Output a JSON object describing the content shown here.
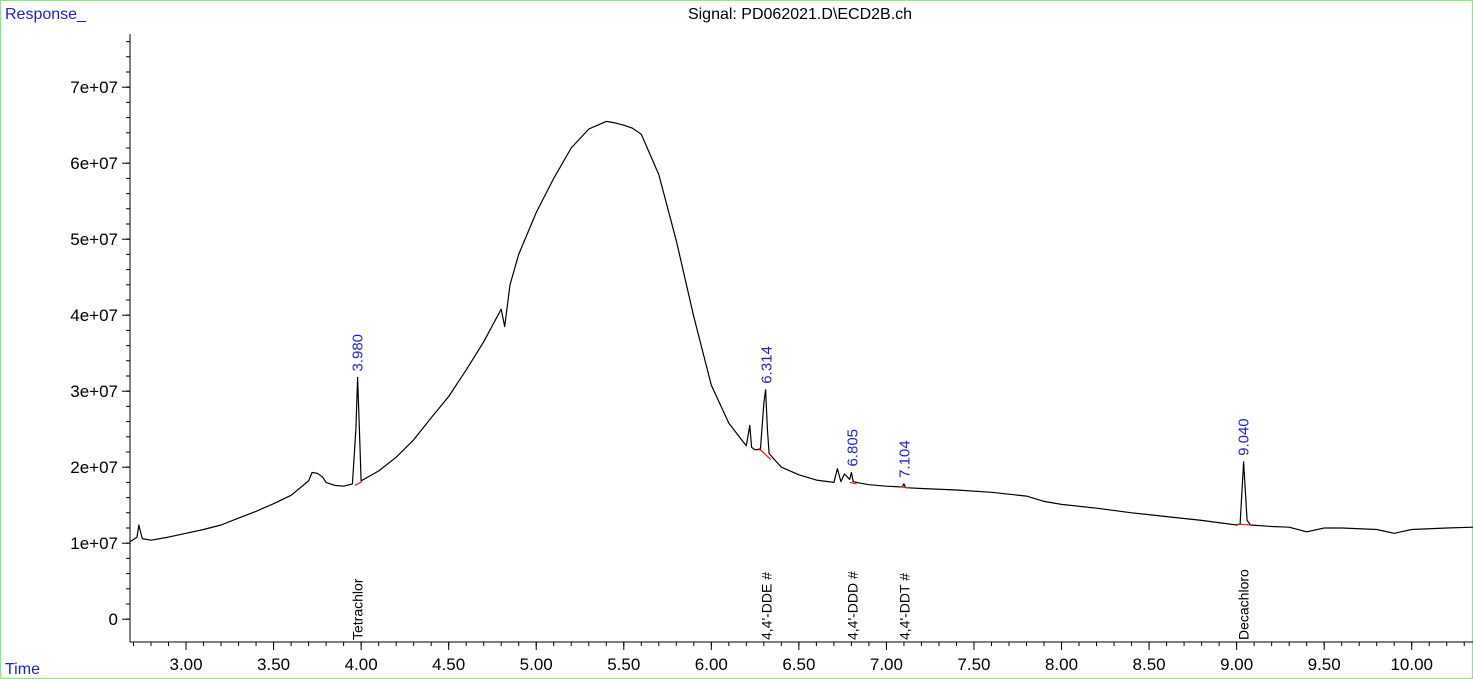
{
  "chart_data": {
    "type": "line",
    "title": "Signal: PD062021.D\\ECD2B.ch",
    "ylabel": "Response_",
    "xlabel": "Time",
    "xlim": [
      2.68,
      10.35
    ],
    "ylim": [
      -3000000,
      77000000
    ],
    "x_ticks": [
      3.0,
      3.5,
      4.0,
      4.5,
      5.0,
      5.5,
      6.0,
      6.5,
      7.0,
      7.5,
      8.0,
      8.5,
      9.0,
      9.5,
      10.0
    ],
    "x_tick_labels": [
      "3.00",
      "3.50",
      "4.00",
      "4.50",
      "5.00",
      "5.50",
      "6.00",
      "6.50",
      "7.00",
      "7.50",
      "8.00",
      "8.50",
      "9.00",
      "9.50",
      "10.00"
    ],
    "y_ticks": [
      0,
      10000000,
      20000000,
      30000000,
      40000000,
      50000000,
      60000000,
      70000000
    ],
    "y_tick_labels": [
      "0",
      "1e+07",
      "2e+07",
      "3e+07",
      "4e+07",
      "5e+07",
      "6e+07",
      "7e+07"
    ],
    "series": [
      {
        "color": "#000000",
        "x": [
          2.68,
          2.72,
          2.73,
          2.75,
          2.8,
          2.9,
          3.0,
          3.1,
          3.2,
          3.3,
          3.4,
          3.5,
          3.6,
          3.7,
          3.72,
          3.75,
          3.78,
          3.8,
          3.85,
          3.9,
          3.95,
          3.97,
          3.98,
          3.99,
          4.0,
          4.1,
          4.2,
          4.3,
          4.4,
          4.5,
          4.6,
          4.7,
          4.8,
          4.82,
          4.85,
          4.9,
          5.0,
          5.1,
          5.2,
          5.3,
          5.4,
          5.45,
          5.5,
          5.55,
          5.6,
          5.7,
          5.8,
          5.9,
          6.0,
          6.1,
          6.2,
          6.22,
          6.23,
          6.25,
          6.28,
          6.3,
          6.31,
          6.32,
          6.33,
          6.36,
          6.4,
          6.5,
          6.6,
          6.7,
          6.72,
          6.74,
          6.76,
          6.79,
          6.8,
          6.81,
          6.85,
          6.9,
          7.0,
          7.09,
          7.1,
          7.11,
          7.2,
          7.4,
          7.6,
          7.8,
          7.9,
          8.0,
          8.2,
          8.4,
          8.6,
          8.8,
          9.0,
          9.02,
          9.04,
          9.06,
          9.08,
          9.2,
          9.3,
          9.4,
          9.5,
          9.6,
          9.8,
          9.9,
          10.0,
          10.2,
          10.35
        ],
        "y": [
          10200000,
          10800000,
          12400000,
          10600000,
          10400000,
          10800000,
          11300000,
          11800000,
          12400000,
          13300000,
          14200000,
          15200000,
          16300000,
          18200000,
          19300000,
          19200000,
          18700000,
          18000000,
          17600000,
          17500000,
          17800000,
          25000000,
          31800000,
          25000000,
          18200000,
          19500000,
          21300000,
          23600000,
          26500000,
          29300000,
          32800000,
          36500000,
          40800000,
          38500000,
          44000000,
          48000000,
          53500000,
          58000000,
          62000000,
          64500000,
          65500000,
          65300000,
          65000000,
          64600000,
          63800000,
          58500000,
          49800000,
          39800000,
          30800000,
          25800000,
          22800000,
          25500000,
          22600000,
          22300000,
          22300000,
          28500000,
          30200000,
          25000000,
          21800000,
          21000000,
          20000000,
          19000000,
          18300000,
          18000000,
          19800000,
          18100000,
          19100000,
          18400000,
          19300000,
          18100000,
          17900000,
          17700000,
          17500000,
          17400000,
          17800000,
          17300000,
          17200000,
          17000000,
          16700000,
          16200000,
          15500000,
          15100000,
          14600000,
          14000000,
          13500000,
          13000000,
          12400000,
          12500000,
          20700000,
          13000000,
          12400000,
          12200000,
          12100000,
          11500000,
          12000000,
          12000000,
          11800000,
          11300000,
          11800000,
          12000000,
          12100000
        ]
      }
    ],
    "peaks": [
      {
        "rt": "3.980",
        "x": 3.98,
        "y": 31800000
      },
      {
        "rt": "6.314",
        "x": 6.314,
        "y": 30200000
      },
      {
        "rt": "6.805",
        "x": 6.805,
        "y": 19300000
      },
      {
        "rt": "7.104",
        "x": 7.104,
        "y": 17800000
      },
      {
        "rt": "9.040",
        "x": 9.04,
        "y": 20700000
      }
    ],
    "compounds": [
      {
        "name": "Tetrachlor",
        "x": 3.98
      },
      {
        "name": "4,4'-DDE #",
        "x": 6.314
      },
      {
        "name": "4,4'-DDD #",
        "x": 6.805
      },
      {
        "name": "4,4'-DDT #",
        "x": 7.104
      },
      {
        "name": "Decachloro",
        "x": 9.04
      }
    ],
    "baselines": [
      {
        "x1": 3.965,
        "y1": 17600000,
        "x2": 4.005,
        "y2": 18100000
      },
      {
        "x1": 6.27,
        "y1": 22500000,
        "x2": 6.34,
        "y2": 21000000
      },
      {
        "x1": 6.79,
        "y1": 18000000,
        "x2": 6.83,
        "y2": 17800000
      },
      {
        "x1": 7.08,
        "y1": 17400000,
        "x2": 7.13,
        "y2": 17300000
      },
      {
        "x1": 9.0,
        "y1": 12500000,
        "x2": 9.08,
        "y2": 12400000
      }
    ],
    "line_color": "#000000",
    "baseline_color": "#e01b1b",
    "label_color": "#1f1fd6",
    "frame_color": "#7cf07c",
    "grid": false
  }
}
